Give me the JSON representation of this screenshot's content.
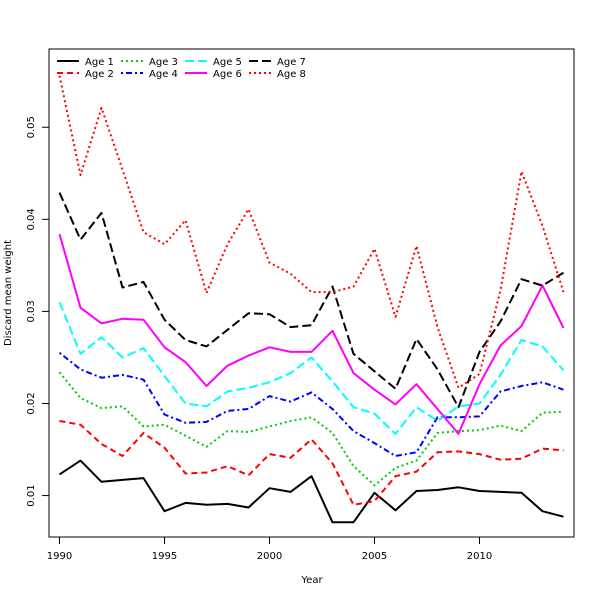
{
  "chart_data": {
    "type": "line",
    "xlabel": "Year",
    "ylabel": "Discard mean weight",
    "xlim": [
      1989.5,
      2014.5
    ],
    "ylim": [
      0.0055,
      0.0585
    ],
    "x_ticks": [
      1990,
      1995,
      2000,
      2005,
      2010
    ],
    "y_ticks": [
      0.01,
      0.02,
      0.03,
      0.04,
      0.05
    ],
    "x_tick_labels": [
      "1990",
      "1995",
      "2000",
      "2005",
      "2010"
    ],
    "y_tick_labels": [
      "0.01",
      "0.02",
      "0.03",
      "0.04",
      "0.05"
    ],
    "legend_position": "top-left",
    "x": [
      1990,
      1991,
      1992,
      1993,
      1994,
      1995,
      1996,
      1997,
      1998,
      1999,
      2000,
      2001,
      2002,
      2003,
      2004,
      2005,
      2006,
      2007,
      2008,
      2009,
      2010,
      2011,
      2012,
      2013,
      2014
    ],
    "series": [
      {
        "name": "Age 1",
        "color": "#000000",
        "dash": "solid",
        "values": [
          0.0123,
          0.0138,
          0.0115,
          0.0117,
          0.0119,
          0.0083,
          0.0092,
          0.009,
          0.0091,
          0.0087,
          0.0108,
          0.0104,
          0.0121,
          0.0071,
          0.0071,
          0.0103,
          0.0084,
          0.0105,
          0.0106,
          0.0109,
          0.0105,
          0.0104,
          0.0103,
          0.0083,
          0.0077
        ]
      },
      {
        "name": "Age 2",
        "color": "#ff0000",
        "dash": "dashed",
        "values": [
          0.0181,
          0.0177,
          0.0156,
          0.0143,
          0.0168,
          0.0152,
          0.0124,
          0.0125,
          0.0132,
          0.0122,
          0.0145,
          0.0141,
          0.0161,
          0.0135,
          0.009,
          0.0094,
          0.0121,
          0.0126,
          0.0147,
          0.0148,
          0.0145,
          0.0139,
          0.014,
          0.0151,
          0.0149
        ]
      },
      {
        "name": "Age 3",
        "color": "#00cc00",
        "dash": "dotted",
        "values": [
          0.0234,
          0.0206,
          0.0195,
          0.0197,
          0.0175,
          0.0177,
          0.0165,
          0.0153,
          0.017,
          0.0169,
          0.0175,
          0.0181,
          0.0185,
          0.0168,
          0.0132,
          0.0111,
          0.013,
          0.0138,
          0.0168,
          0.017,
          0.0171,
          0.0176,
          0.017,
          0.019,
          0.0191
        ]
      },
      {
        "name": "Age 4",
        "color": "#0000ff",
        "dash": "dashdot",
        "values": [
          0.0255,
          0.0237,
          0.0228,
          0.0231,
          0.0226,
          0.0188,
          0.0179,
          0.018,
          0.0192,
          0.0194,
          0.0208,
          0.0202,
          0.0212,
          0.0194,
          0.017,
          0.0157,
          0.0143,
          0.0147,
          0.0185,
          0.0185,
          0.0186,
          0.0213,
          0.0219,
          0.0223,
          0.0215
        ]
      },
      {
        "name": "Age 5",
        "color": "#00ffff",
        "dash": "longdash",
        "values": [
          0.031,
          0.0254,
          0.0272,
          0.025,
          0.026,
          0.023,
          0.02,
          0.0197,
          0.0213,
          0.0217,
          0.0223,
          0.0233,
          0.025,
          0.0224,
          0.0196,
          0.0189,
          0.0167,
          0.0196,
          0.0181,
          0.0197,
          0.02,
          0.0231,
          0.0269,
          0.0262,
          0.0236
        ]
      },
      {
        "name": "Age 6",
        "color": "#ff00ff",
        "dash": "solid",
        "values": [
          0.0384,
          0.0304,
          0.0287,
          0.0292,
          0.0291,
          0.0261,
          0.0245,
          0.0219,
          0.0241,
          0.0252,
          0.0261,
          0.0256,
          0.0256,
          0.0279,
          0.0233,
          0.0215,
          0.0199,
          0.0221,
          0.0194,
          0.0167,
          0.0221,
          0.0263,
          0.0284,
          0.0328,
          0.0282
        ]
      },
      {
        "name": "Age 7",
        "color": "#000000",
        "dash": "longdash",
        "values": [
          0.0429,
          0.0378,
          0.0407,
          0.0326,
          0.0332,
          0.0291,
          0.0269,
          0.0262,
          0.028,
          0.0298,
          0.0297,
          0.0283,
          0.0285,
          0.0327,
          0.0254,
          0.0235,
          0.0216,
          0.027,
          0.0237,
          0.0196,
          0.0256,
          0.0289,
          0.0335,
          0.0328,
          0.0342
        ]
      },
      {
        "name": "Age 8",
        "color": "#ff0000",
        "dash": "dotted",
        "values": [
          0.0556,
          0.0448,
          0.0521,
          0.0454,
          0.0386,
          0.0373,
          0.0399,
          0.032,
          0.0373,
          0.0411,
          0.0353,
          0.0341,
          0.0321,
          0.0321,
          0.0327,
          0.0368,
          0.0294,
          0.0371,
          0.0283,
          0.0217,
          0.0232,
          0.0323,
          0.0452,
          0.0393,
          0.0321
        ]
      }
    ]
  }
}
